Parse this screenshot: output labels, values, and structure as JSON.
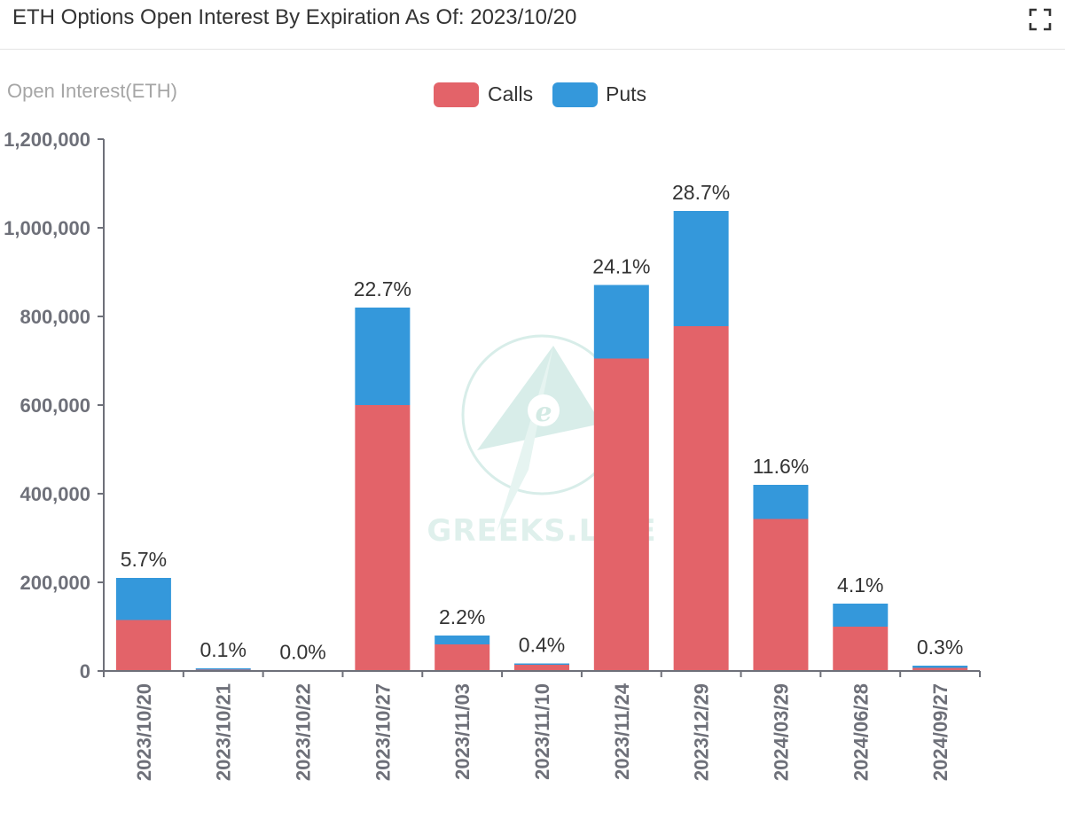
{
  "header": {
    "title": "ETH Options Open Interest By Expiration As Of: 2023/10/20",
    "fullscreen_icon": "fullscreen-icon"
  },
  "watermark": {
    "text": "GREEKS.LIVE"
  },
  "chart_data": {
    "type": "bar",
    "stacked": true,
    "ylabel": "Open Interest(ETH)",
    "ylim": [
      0,
      1200000
    ],
    "yticks": [
      0,
      200000,
      400000,
      600000,
      800000,
      1000000,
      1200000
    ],
    "ytick_labels": [
      "0",
      "200,000",
      "400,000",
      "600,000",
      "800,000",
      "1,000,000",
      "1,200,000"
    ],
    "categories": [
      "2023/10/20",
      "2023/10/21",
      "2023/10/22",
      "2023/10/27",
      "2023/11/03",
      "2023/11/10",
      "2023/11/24",
      "2023/12/29",
      "2024/03/29",
      "2024/06/28",
      "2024/09/27"
    ],
    "series": [
      {
        "name": "Calls",
        "color": "#e36369",
        "values": [
          115000,
          3000,
          500,
          600000,
          60000,
          14000,
          705000,
          778000,
          343000,
          100000,
          7000
        ]
      },
      {
        "name": "Puts",
        "color": "#3498db",
        "values": [
          95000,
          3000,
          500,
          220000,
          20000,
          3000,
          166000,
          260000,
          77000,
          52000,
          5000
        ]
      }
    ],
    "data_labels": [
      "5.7%",
      "0.1%",
      "0.0%",
      "22.7%",
      "2.2%",
      "0.4%",
      "24.1%",
      "28.7%",
      "11.6%",
      "4.1%",
      "0.3%"
    ],
    "legend": {
      "position": "top-center",
      "entries": [
        "Calls",
        "Puts"
      ]
    },
    "grid": false
  }
}
